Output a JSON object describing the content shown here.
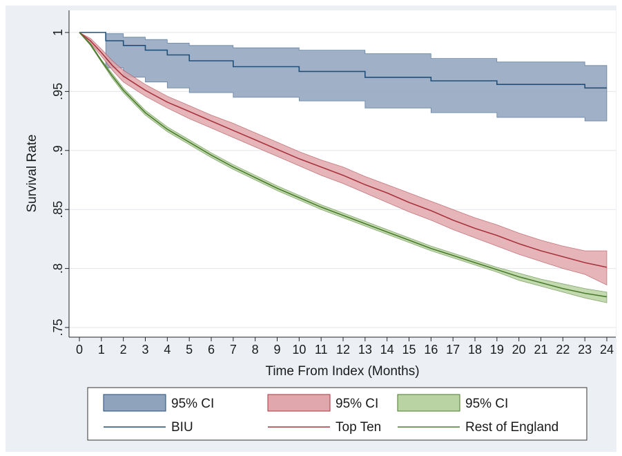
{
  "chart_data": {
    "type": "line",
    "title": "",
    "xlabel": "Time From Index (Months)",
    "ylabel": "Survival Rate",
    "xlim": [
      0,
      24
    ],
    "ylim": [
      0.75,
      1.0
    ],
    "x_ticks": [
      0,
      1,
      2,
      3,
      4,
      5,
      6,
      7,
      8,
      9,
      10,
      11,
      12,
      13,
      14,
      15,
      16,
      17,
      18,
      19,
      20,
      21,
      22,
      23,
      24
    ],
    "x_tick_labels": [
      "0",
      "1",
      "2",
      "3",
      "4",
      "5",
      "6",
      "7",
      "8",
      "9",
      "10",
      "11",
      "12",
      "13",
      "14",
      "15",
      "16",
      "17",
      "18",
      "19",
      "20",
      "21",
      "22",
      "23",
      "24"
    ],
    "y_ticks": [
      0.75,
      0.8,
      0.85,
      0.9,
      0.95,
      1.0
    ],
    "y_tick_labels": [
      ".75",
      ".8",
      ".85",
      ".9",
      ".95",
      "1"
    ],
    "grid": "horizontal",
    "legend_position": "bottom",
    "series": [
      {
        "name": "BIU",
        "color": "#1f4e79",
        "ci_fill": "#8fa3bd",
        "ci_label": "95% CI",
        "step": true,
        "x": [
          0,
          1.2,
          1.2,
          2.0,
          3.0,
          4.0,
          5.0,
          7.0,
          10.0,
          13.0,
          16.0,
          19.0,
          23.0,
          24.0
        ],
        "y": [
          1.0,
          1.0,
          0.993,
          0.989,
          0.985,
          0.981,
          0.976,
          0.971,
          0.967,
          0.962,
          0.959,
          0.956,
          0.953,
          0.953
        ],
        "lower": [
          1.0,
          1.0,
          0.97,
          0.962,
          0.958,
          0.953,
          0.949,
          0.945,
          0.942,
          0.936,
          0.932,
          0.928,
          0.925,
          0.925
        ],
        "upper": [
          1.0,
          1.0,
          0.999,
          0.996,
          0.994,
          0.991,
          0.989,
          0.987,
          0.985,
          0.982,
          0.978,
          0.975,
          0.972,
          0.972
        ]
      },
      {
        "name": "Top Ten",
        "color": "#a8333d",
        "ci_fill": "#e0a8ad",
        "ci_label": "95% CI",
        "step": false,
        "x": [
          0,
          0.5,
          1,
          1.5,
          2,
          3,
          4,
          5,
          6,
          7,
          8,
          9,
          10,
          11,
          12,
          13,
          14,
          15,
          16,
          17,
          18,
          19,
          20,
          21,
          22,
          23,
          24
        ],
        "y": [
          1.0,
          0.993,
          0.983,
          0.972,
          0.963,
          0.951,
          0.941,
          0.933,
          0.925,
          0.917,
          0.909,
          0.901,
          0.893,
          0.886,
          0.879,
          0.871,
          0.864,
          0.856,
          0.849,
          0.841,
          0.834,
          0.828,
          0.821,
          0.815,
          0.81,
          0.805,
          0.801
        ],
        "lower": [
          1.0,
          0.991,
          0.98,
          0.968,
          0.958,
          0.946,
          0.936,
          0.927,
          0.919,
          0.911,
          0.903,
          0.895,
          0.887,
          0.879,
          0.872,
          0.864,
          0.856,
          0.848,
          0.841,
          0.833,
          0.826,
          0.819,
          0.812,
          0.806,
          0.8,
          0.795,
          0.786
        ],
        "upper": [
          1.0,
          0.995,
          0.986,
          0.976,
          0.968,
          0.956,
          0.946,
          0.938,
          0.93,
          0.923,
          0.915,
          0.907,
          0.899,
          0.892,
          0.886,
          0.878,
          0.871,
          0.864,
          0.857,
          0.85,
          0.843,
          0.837,
          0.83,
          0.824,
          0.819,
          0.815,
          0.815
        ]
      },
      {
        "name": "Rest of England",
        "color": "#4a7a2c",
        "ci_fill": "#b9d4a2",
        "ci_label": "95% CI",
        "step": false,
        "x": [
          0,
          0.5,
          1,
          1.5,
          2,
          3,
          4,
          5,
          6,
          7,
          8,
          9,
          10,
          11,
          12,
          13,
          14,
          15,
          16,
          17,
          18,
          19,
          20,
          21,
          22,
          23,
          24
        ],
        "y": [
          1.0,
          0.99,
          0.976,
          0.963,
          0.951,
          0.932,
          0.918,
          0.907,
          0.896,
          0.886,
          0.877,
          0.868,
          0.86,
          0.852,
          0.845,
          0.838,
          0.831,
          0.824,
          0.817,
          0.811,
          0.805,
          0.799,
          0.793,
          0.788,
          0.783,
          0.779,
          0.776
        ],
        "lower": [
          1.0,
          0.989,
          0.975,
          0.961,
          0.949,
          0.93,
          0.916,
          0.905,
          0.894,
          0.884,
          0.875,
          0.866,
          0.858,
          0.85,
          0.843,
          0.836,
          0.829,
          0.822,
          0.815,
          0.809,
          0.803,
          0.797,
          0.79,
          0.785,
          0.78,
          0.775,
          0.771
        ],
        "upper": [
          1.0,
          0.991,
          0.977,
          0.965,
          0.953,
          0.934,
          0.92,
          0.909,
          0.898,
          0.888,
          0.879,
          0.87,
          0.862,
          0.854,
          0.847,
          0.84,
          0.833,
          0.826,
          0.819,
          0.813,
          0.807,
          0.801,
          0.796,
          0.791,
          0.787,
          0.783,
          0.78
        ]
      }
    ]
  }
}
